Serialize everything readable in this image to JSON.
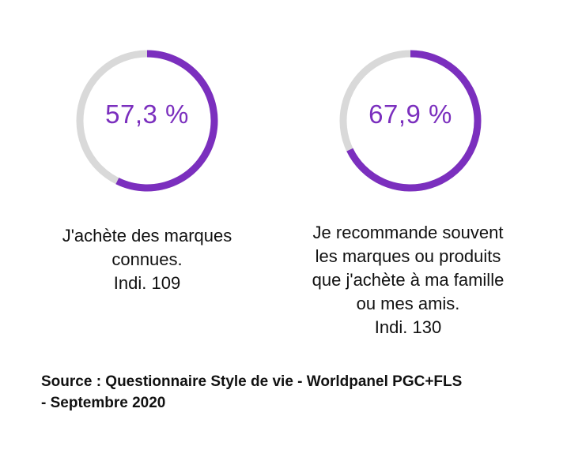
{
  "colors": {
    "accent": "#7b2fbe",
    "track": "#d9d9d9"
  },
  "chart_data": [
    {
      "type": "pie",
      "value": 57.3,
      "value_label": "57,3 %",
      "caption_lines": [
        "J'achète des marques",
        "connues.",
        "Indi. 109"
      ]
    },
    {
      "type": "pie",
      "value": 67.9,
      "value_label": "67,9 %",
      "caption_lines": [
        "Je recommande souvent",
        "les marques ou produits",
        "que j'achète à ma famille",
        "ou mes amis.",
        "Indi. 130"
      ]
    }
  ],
  "source": {
    "line1": "Source : Questionnaire Style de vie -  Worldpanel PGC+FLS",
    "line2": "- Septembre 2020"
  }
}
